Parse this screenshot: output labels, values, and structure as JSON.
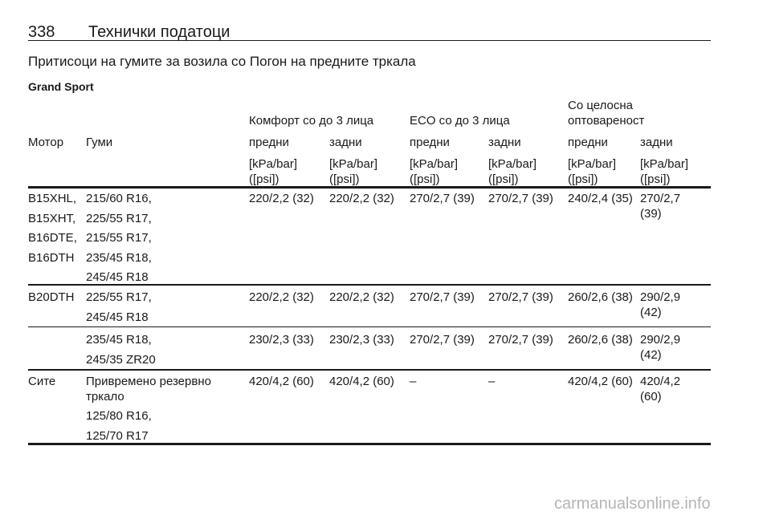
{
  "header": {
    "page_number": "338",
    "title": "Технички податоци"
  },
  "section_title": "Притисоци на гумите за возила со Погон на предните тркала",
  "subtitle": "Grand Sport",
  "table": {
    "group_headers": [
      "Комфорт со до 3 лица",
      "ECO со до 3 лица",
      "Со целосна оптовареност"
    ],
    "columns": [
      "Мотор",
      "Гуми",
      "предни",
      "задни",
      "предни",
      "задни",
      "предни",
      "задни"
    ],
    "units": [
      "[kPa/bar] ([psi])",
      "[kPa/bar] ([psi])",
      "[kPa/bar] ([psi])",
      "[kPa/bar] ([psi])",
      "[kPa/bar] ([psi])",
      "[kPa/bar] ([psi])"
    ],
    "rows": [
      {
        "motors": [
          "B15XHL,",
          "B15XHT,",
          "B16DTE,",
          "B16DTH"
        ],
        "tyres": [
          "215/60 R16,",
          "225/55 R17,",
          "215/55 R17,",
          "235/45 R18,",
          "245/45 R18"
        ],
        "values": [
          "220/2,2 (32)",
          "220/2,2 (32)",
          "270/2,7 (39)",
          "270/2,7 (39)",
          "240/2,4 (35)",
          "270/2,7 (39)"
        ]
      },
      {
        "motors": [
          "B20DTH"
        ],
        "tyres": [
          "225/55 R17,",
          "245/45 R18"
        ],
        "values": [
          "220/2,2 (32)",
          "220/2,2 (32)",
          "270/2,7 (39)",
          "270/2,7 (39)",
          "260/2,6 (38)",
          "290/2,9 (42)"
        ]
      },
      {
        "motors": [],
        "tyres": [
          "235/45 R18,",
          "245/35 ZR20"
        ],
        "values": [
          "230/2,3 (33)",
          "230/2,3 (33)",
          "270/2,7 (39)",
          "270/2,7 (39)",
          "260/2,6 (38)",
          "290/2,9 (42)"
        ]
      },
      {
        "motors": [
          "Сите"
        ],
        "tyres": [
          "Привремено резервно тркало",
          "125/80 R16,",
          "125/70 R17"
        ],
        "values": [
          "420/4,2 (60)",
          "420/4,2 (60)",
          "–",
          "–",
          "420/4,2 (60)",
          "420/4,2 (60)"
        ]
      }
    ]
  },
  "watermark": "carmanualsonline.info"
}
